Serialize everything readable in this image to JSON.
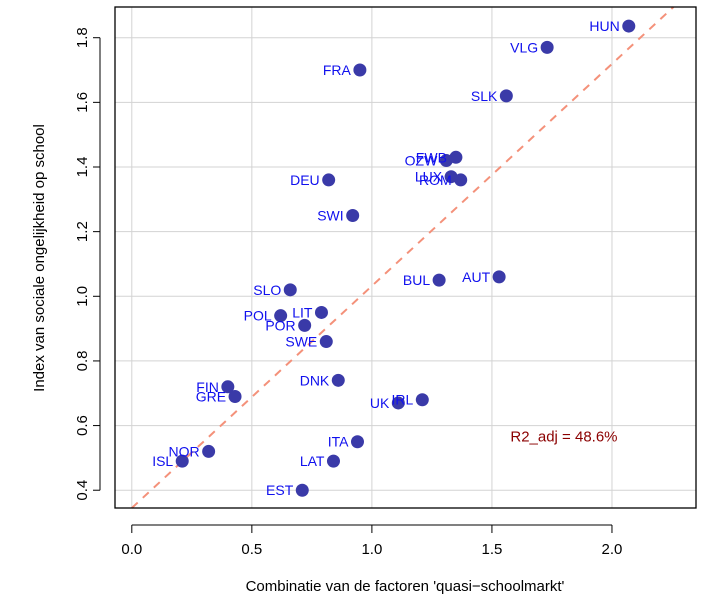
{
  "chart_data": {
    "type": "scatter",
    "title": "",
    "xlabel": "Combinatie van de factoren 'quasi−schoolmarkt'",
    "ylabel": "Index van sociale ongelijkheid op school",
    "xlim": [
      -0.07,
      2.35
    ],
    "ylim": [
      0.345,
      1.895
    ],
    "xticks": [
      0.0,
      0.5,
      1.0,
      1.5,
      2.0
    ],
    "xtick_labels": [
      "0.0",
      "0.5",
      "1.0",
      "1.5",
      "2.0"
    ],
    "yticks": [
      0.4,
      0.6,
      0.8,
      1.0,
      1.2,
      1.4,
      1.6,
      1.8
    ],
    "ytick_labels": [
      "0.4",
      "0.6",
      "0.8",
      "1.0",
      "1.2",
      "1.4",
      "1.6",
      "1.8"
    ],
    "grid": true,
    "colors": {
      "point": "#3a3aa8",
      "label": "#1010ee",
      "fit_line": "#f4917a",
      "annotation": "#8b0000",
      "grid": "#d3d3d3"
    },
    "points": [
      {
        "label": "HUN",
        "x": 2.07,
        "y": 1.836
      },
      {
        "label": "VLG",
        "x": 1.73,
        "y": 1.77
      },
      {
        "label": "FRA",
        "x": 0.95,
        "y": 1.7
      },
      {
        "label": "SLK",
        "x": 1.56,
        "y": 1.62
      },
      {
        "label": "FWB",
        "x": 1.35,
        "y": 1.43
      },
      {
        "label": "OZW",
        "x": 1.31,
        "y": 1.42
      },
      {
        "label": "LUX",
        "x": 1.33,
        "y": 1.37
      },
      {
        "label": "ROM",
        "x": 1.37,
        "y": 1.36
      },
      {
        "label": "DEU",
        "x": 0.82,
        "y": 1.36
      },
      {
        "label": "SWI",
        "x": 0.92,
        "y": 1.25
      },
      {
        "label": "BUL",
        "x": 1.28,
        "y": 1.05
      },
      {
        "label": "AUT",
        "x": 1.53,
        "y": 1.06
      },
      {
        "label": "SLO",
        "x": 0.66,
        "y": 1.02
      },
      {
        "label": "POL",
        "x": 0.62,
        "y": 0.94
      },
      {
        "label": "LIT",
        "x": 0.79,
        "y": 0.95
      },
      {
        "label": "POR",
        "x": 0.72,
        "y": 0.91
      },
      {
        "label": "SWE",
        "x": 0.81,
        "y": 0.86
      },
      {
        "label": "DNK",
        "x": 0.86,
        "y": 0.74
      },
      {
        "label": "FIN",
        "x": 0.4,
        "y": 0.72
      },
      {
        "label": "GRE",
        "x": 0.43,
        "y": 0.69
      },
      {
        "label": "UK",
        "x": 1.11,
        "y": 0.67
      },
      {
        "label": "IRL",
        "x": 1.21,
        "y": 0.68
      },
      {
        "label": "ITA",
        "x": 0.94,
        "y": 0.55
      },
      {
        "label": "NOR",
        "x": 0.32,
        "y": 0.52
      },
      {
        "label": "ISL",
        "x": 0.21,
        "y": 0.49
      },
      {
        "label": "LAT",
        "x": 0.84,
        "y": 0.49
      },
      {
        "label": "EST",
        "x": 0.71,
        "y": 0.4
      }
    ],
    "fit_line": {
      "intercept": 0.345,
      "slope": 0.687,
      "style": "dashed"
    },
    "annotations": [
      {
        "text": "R2_adj = 48.6%",
        "x": 1.8,
        "y": 0.55
      }
    ]
  }
}
